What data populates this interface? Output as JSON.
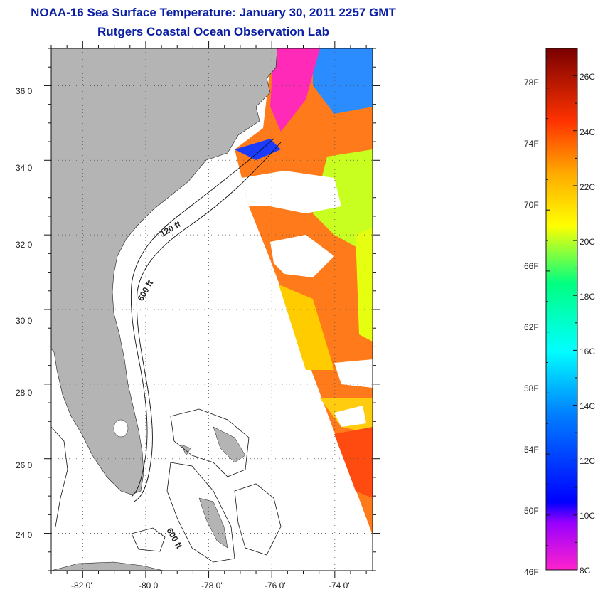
{
  "title": {
    "line1": "NOAA-16 Sea Surface Temperature:  January 30, 2011 2257 GMT",
    "line2": "Rutgers Coastal Ocean Observation Lab"
  },
  "map": {
    "lon_range": [
      -83,
      -72.8
    ],
    "lat_range": [
      23,
      37
    ],
    "lon_ticks": [
      "-82 0'",
      "-80 0'",
      "-78 0'",
      "-76 0'",
      "-74 0'"
    ],
    "lat_ticks": [
      "36 0'",
      "34 0'",
      "32 0'",
      "30 0'",
      "28 0'",
      "26 0'",
      "24 0'"
    ],
    "contour_labels": [
      "120 ft",
      "600 ft",
      "600 ft"
    ],
    "grid": "dotted",
    "land_color": "#b4b4b4"
  },
  "colorbar": {
    "fahrenheit_labels": [
      "78F",
      "74F",
      "70F",
      "66F",
      "62F",
      "58F",
      "54F",
      "50F",
      "46F"
    ],
    "celsius_labels": [
      "26C",
      "24C",
      "22C",
      "20C",
      "18C",
      "16C",
      "14C",
      "12C",
      "10C",
      "8C"
    ],
    "range_c": [
      8,
      27
    ],
    "colors": [
      "#ff22cc",
      "#6a00ff",
      "#0000ff",
      "#0080ff",
      "#00ffff",
      "#00ff80",
      "#ffff00",
      "#ff8000",
      "#ff0000",
      "#800000"
    ]
  }
}
